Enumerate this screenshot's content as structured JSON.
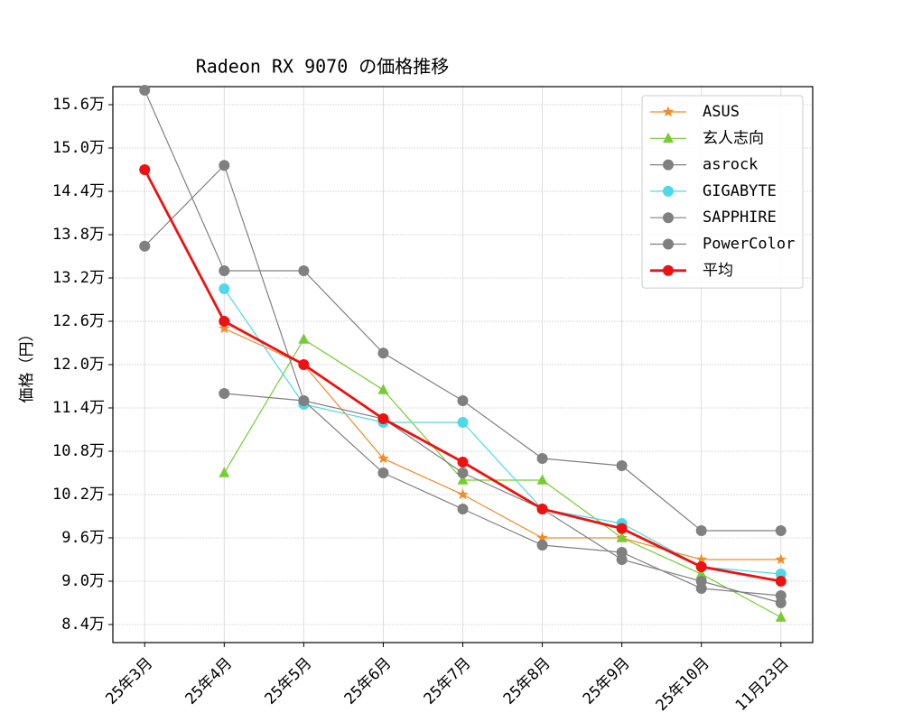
{
  "chart_data": {
    "type": "line",
    "title": "Radeon RX 9070 の価格推移",
    "y_label": "価格（円）",
    "categories": [
      "25年3月",
      "25年4月",
      "25年5月",
      "25年6月",
      "25年7月",
      "25年8月",
      "25年9月",
      "25年10月",
      "11月23日"
    ],
    "series": [
      {
        "name": "ASUS",
        "color": "#f28a26",
        "marker": "star",
        "line_width": 1.2,
        "values": [
          null,
          125000,
          120000,
          107000,
          102000,
          96000,
          96000,
          93000,
          93000
        ]
      },
      {
        "name": "玄人志向",
        "color": "#77cc33",
        "marker": "triangle",
        "line_width": 1.2,
        "values": [
          null,
          105000,
          123500,
          116500,
          104000,
          104000,
          96000,
          91000,
          85000
        ]
      },
      {
        "name": "asrock",
        "color": "#808080",
        "marker": "circle",
        "line_width": 1.2,
        "values": [
          136400,
          147600,
          115000,
          112500,
          105000,
          100000,
          93000,
          90000,
          87000
        ]
      },
      {
        "name": "GIGABYTE",
        "color": "#4dd9e8",
        "marker": "circle",
        "line_width": 1.2,
        "values": [
          null,
          130500,
          114500,
          112000,
          112000,
          100000,
          98000,
          92000,
          91000
        ]
      },
      {
        "name": "SAPPHIRE",
        "color": "#808080",
        "marker": "circle",
        "line_width": 1.2,
        "values": [
          null,
          116000,
          115000,
          105000,
          100000,
          95000,
          94000,
          89000,
          88000
        ]
      },
      {
        "name": "PowerColor",
        "color": "#808080",
        "marker": "circle",
        "line_width": 1.2,
        "values": [
          158000,
          133000,
          133000,
          121600,
          115000,
          107000,
          106000,
          97000,
          97000
        ]
      },
      {
        "name": "平均",
        "color": "#ee1111",
        "marker": "circle",
        "line_width": 2.8,
        "values": [
          147000,
          126000,
          120000,
          112500,
          106500,
          100000,
          97300,
          92000,
          90000
        ]
      }
    ],
    "ylim": [
      81500,
      158500
    ],
    "yticks": [
      {
        "value": 84000,
        "label": "8.4万"
      },
      {
        "value": 90000,
        "label": "9.0万"
      },
      {
        "value": 96000,
        "label": "9.6万"
      },
      {
        "value": 102000,
        "label": "10.2万"
      },
      {
        "value": 108000,
        "label": "10.8万"
      },
      {
        "value": 114000,
        "label": "11.4万"
      },
      {
        "value": 120000,
        "label": "12.0万"
      },
      {
        "value": 126000,
        "label": "12.6万"
      },
      {
        "value": 132000,
        "label": "13.2万"
      },
      {
        "value": 138000,
        "label": "13.8万"
      },
      {
        "value": 144000,
        "label": "14.4万"
      },
      {
        "value": 150000,
        "label": "15.0万"
      },
      {
        "value": 156000,
        "label": "15.6万"
      }
    ],
    "grid": true,
    "legend_position": "upper right"
  }
}
